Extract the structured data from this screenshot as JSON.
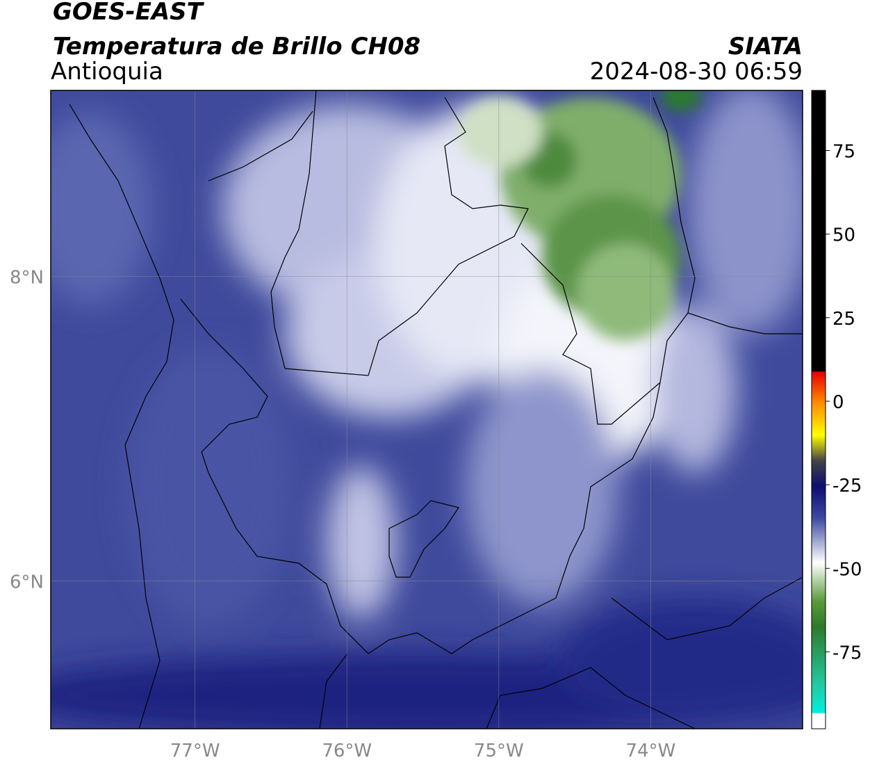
{
  "header": {
    "satellite": "GOES-EAST",
    "product": "Temperatura de Brillo CH08",
    "region": "Antioquia",
    "source": "SIATA",
    "datetime": "2024-08-30 06:59"
  },
  "map": {
    "xlim": [
      -77.95,
      -73.0
    ],
    "ylim": [
      5.03,
      9.22
    ],
    "xticks": [
      {
        "value": -77,
        "label": "77°W"
      },
      {
        "value": -76,
        "label": "76°W"
      },
      {
        "value": -75,
        "label": "75°W"
      },
      {
        "value": -74,
        "label": "74°W"
      }
    ],
    "yticks": [
      {
        "value": 8,
        "label": "8°N"
      },
      {
        "value": 6,
        "label": "6°N"
      }
    ],
    "grid": true
  },
  "colorbar": {
    "lim": [
      -98,
      93
    ],
    "ticks": [
      75,
      50,
      25,
      0,
      -25,
      -50,
      -75
    ]
  }
}
